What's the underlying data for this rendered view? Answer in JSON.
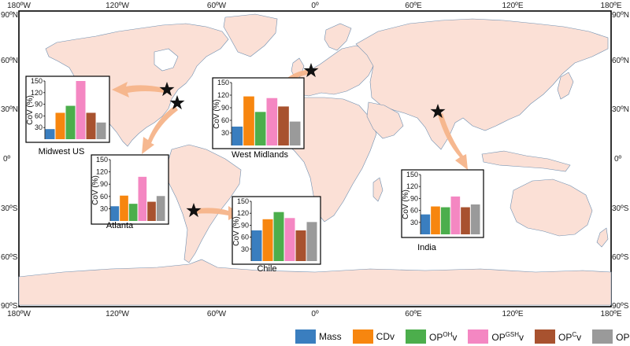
{
  "map": {
    "top_longitudes": [
      "180ºW",
      "120ºW",
      "60ºW",
      "0º",
      "60ºE",
      "120ºE",
      "180ºE"
    ],
    "bottom_longitudes": [
      "180ºW",
      "120ºW",
      "60ºW",
      "0º",
      "60ºE",
      "120ºE",
      "180ºE"
    ],
    "left_latitudes": [
      "90ºN",
      "60ºN",
      "30ºN",
      "0º",
      "30ºS",
      "60ºS",
      "90ºS"
    ],
    "right_latitudes": [
      "90ºN",
      "60ºN",
      "30ºN",
      "0º",
      "30ºS",
      "60ºS",
      "90ºS"
    ],
    "colors": {
      "land": "#fbe0d6",
      "coast": "#6f8fb0",
      "arrow": "#f5b48a",
      "star": "#111111"
    }
  },
  "legend": {
    "items": [
      {
        "main": "Mass",
        "sup": "",
        "tail": "",
        "color": "#3a7ebf"
      },
      {
        "main": "CDv",
        "sup": "",
        "tail": "",
        "color": "#f7860f"
      },
      {
        "main": "OP",
        "sup": "OH",
        "tail": "v",
        "color": "#4cae4c"
      },
      {
        "main": "OP",
        "sup": "GSH",
        "tail": "v",
        "color": "#f487c2"
      },
      {
        "main": "OP",
        "sup": "C",
        "tail": "v",
        "color": "#a8522f"
      },
      {
        "main": "OP",
        "sup": "DTT",
        "tail": "v",
        "color": "#9a9a9a"
      }
    ]
  },
  "chart_data": [
    {
      "type": "bar",
      "site": "Midwest US",
      "ylabel": "CoV (%)",
      "yticks": [
        30,
        60,
        90,
        120,
        150
      ],
      "ylim": [
        0,
        150
      ],
      "values": [
        26,
        68,
        86,
        150,
        68,
        43
      ]
    },
    {
      "type": "bar",
      "site": "West Midlands",
      "ylabel": "CoV (%)",
      "yticks": [
        30,
        60,
        90,
        120,
        150
      ],
      "ylim": [
        0,
        150
      ],
      "values": [
        45,
        117,
        80,
        113,
        93,
        57
      ]
    },
    {
      "type": "bar",
      "site": "Atlanta",
      "ylabel": "CoV (%)",
      "yticks": [
        30,
        60,
        90,
        120,
        150
      ],
      "ylim": [
        0,
        150
      ],
      "values": [
        36,
        62,
        42,
        108,
        47,
        61
      ]
    },
    {
      "type": "bar",
      "site": "Chile",
      "ylabel": "CoV (%)",
      "yticks": [
        30,
        60,
        90,
        120,
        150
      ],
      "ylim": [
        0,
        150
      ],
      "values": [
        77,
        105,
        123,
        108,
        77,
        98
      ]
    },
    {
      "type": "bar",
      "site": "India",
      "ylabel": "CoV (%)",
      "yticks": [
        30,
        60,
        90,
        120,
        150
      ],
      "ylim": [
        0,
        150
      ],
      "values": [
        50,
        70,
        68,
        95,
        68,
        75
      ]
    }
  ]
}
